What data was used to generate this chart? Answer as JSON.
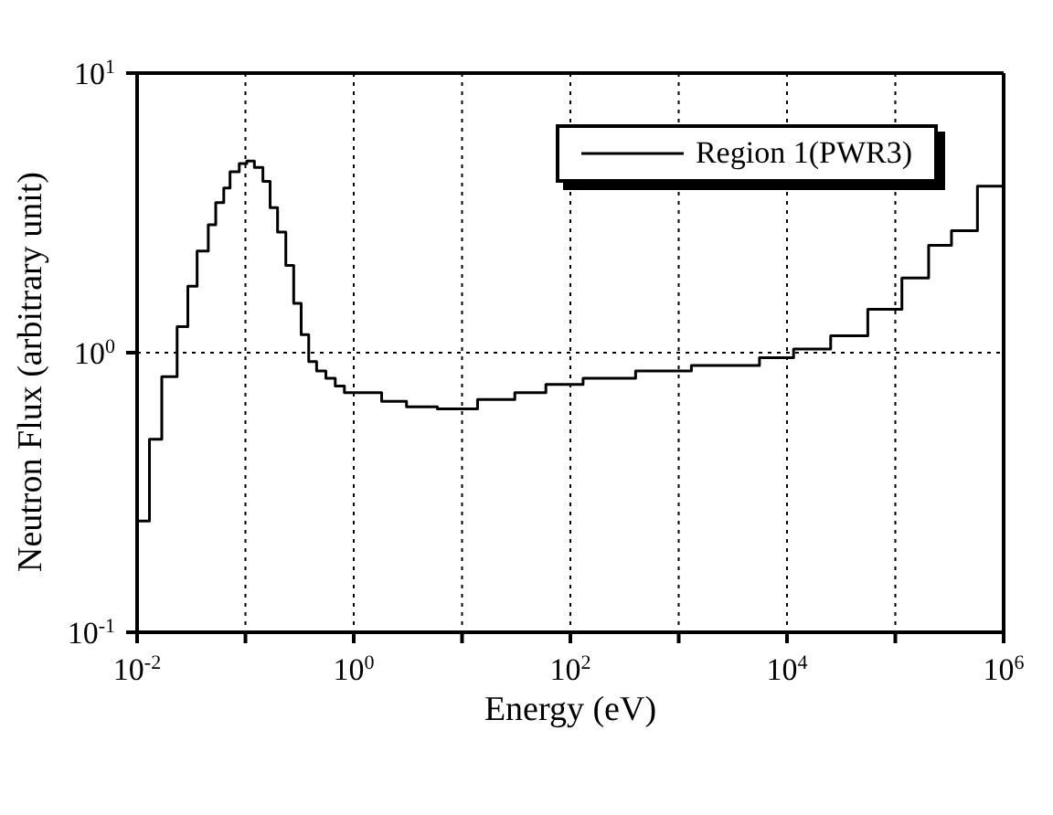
{
  "chart_data": {
    "type": "histogram",
    "xlabel": "Energy (eV)",
    "ylabel": "Neutron Flux (arbitrary unit)",
    "log": "xy",
    "grid": true,
    "legend": "top right",
    "bins": [
      0.01,
      0.013,
      0.0169,
      0.0234,
      0.0294,
      0.0358,
      0.0454,
      0.0532,
      0.0631,
      0.0721,
      0.0877,
      0.103,
      0.121,
      0.145,
      0.169,
      0.198,
      0.236,
      0.279,
      0.327,
      0.384,
      0.454,
      0.553,
      0.675,
      0.82,
      1.81,
      3.07,
      5.92,
      13.9,
      30.7,
      59.4,
      131,
      400,
      1310,
      5570,
      11500,
      25300,
      55700,
      115000,
      203000,
      330000,
      573000,
      1000000
    ],
    "series": [
      {
        "name": "Region 1(PWR3)",
        "color": "#000000",
        "values": [
          0.25,
          0.49,
          0.82,
          1.24,
          1.73,
          2.31,
          2.87,
          3.44,
          3.88,
          4.44,
          4.75,
          4.85,
          4.6,
          4.1,
          3.3,
          2.7,
          2.05,
          1.5,
          1.16,
          0.93,
          0.86,
          0.81,
          0.76,
          0.72,
          0.67,
          0.64,
          0.63,
          0.68,
          0.72,
          0.77,
          0.81,
          0.86,
          0.9,
          0.96,
          1.03,
          1.15,
          1.43,
          1.85,
          2.42,
          2.73,
          3.94
        ]
      }
    ],
    "xlim": [
      0.01,
      1000000
    ],
    "xticks": [
      {
        "value": 0.01,
        "label": "10$^{-2}$"
      },
      {
        "value": 0.1,
        "label": null
      },
      {
        "value": 1,
        "label": "10$^{0}$"
      },
      {
        "value": 10,
        "label": null
      },
      {
        "value": 100,
        "label": "10$^{2}$"
      },
      {
        "value": 1000,
        "label": null
      },
      {
        "value": 10000,
        "label": "10$^{4}$"
      },
      {
        "value": 100000,
        "label": null
      },
      {
        "value": 1000000,
        "label": "10$^{6}$"
      }
    ],
    "ylim": [
      0.1,
      10
    ],
    "yticks": [
      {
        "value": 0.1,
        "label": "10$^{-1}$"
      },
      {
        "value": 1,
        "label": "10$^{0}$"
      },
      {
        "value": 10,
        "label": "10$^{1}$"
      }
    ]
  }
}
